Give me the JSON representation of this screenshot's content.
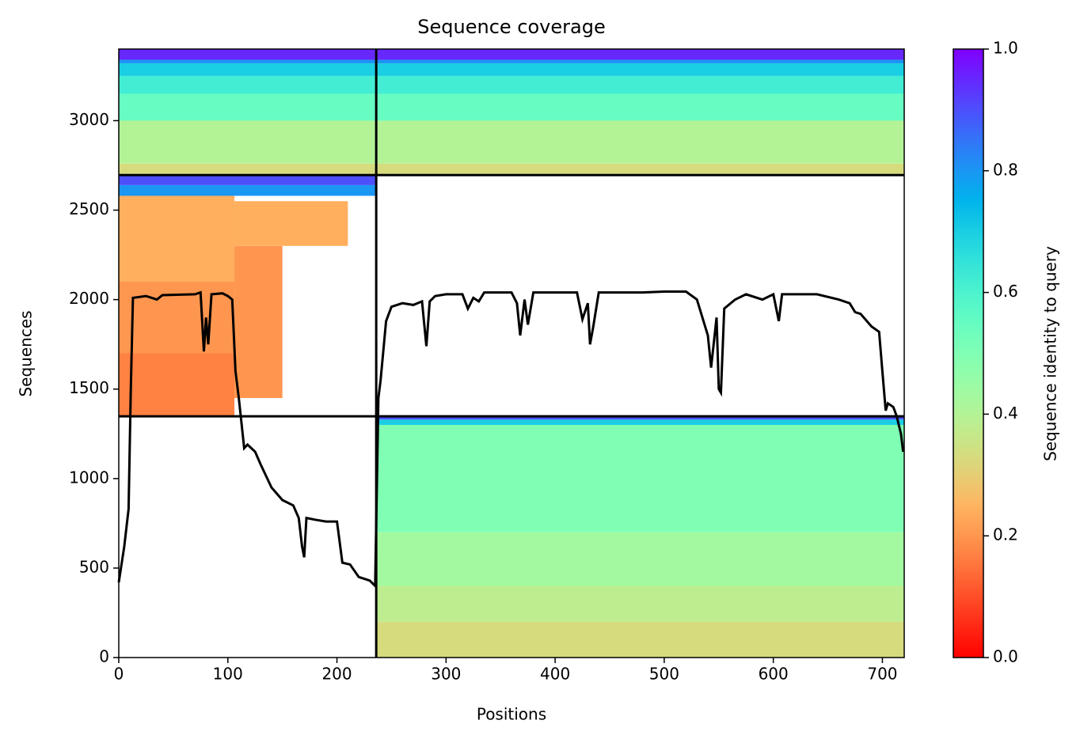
{
  "chart_data": {
    "type": "coverage",
    "title": "Sequence coverage",
    "xlabel": "Positions",
    "ylabel": "Sequences",
    "xlim": [
      0,
      720
    ],
    "ylim": [
      0,
      3400
    ],
    "xticks": [
      0,
      100,
      200,
      300,
      400,
      500,
      600,
      700
    ],
    "yticks": [
      0,
      500,
      1000,
      1500,
      2000,
      2500,
      3000
    ],
    "separators": {
      "x": [
        236
      ],
      "y": [
        1348,
        2696
      ]
    },
    "blocks": [
      {
        "x": [
          236,
          720
        ],
        "y": [
          0,
          200
        ],
        "identity": 0.33
      },
      {
        "x": [
          236,
          720
        ],
        "y": [
          200,
          400
        ],
        "identity": 0.38
      },
      {
        "x": [
          236,
          720
        ],
        "y": [
          400,
          700
        ],
        "identity": 0.43
      },
      {
        "x": [
          236,
          720
        ],
        "y": [
          700,
          1300
        ],
        "identity": 0.5
      },
      {
        "x": [
          236,
          720
        ],
        "y": [
          1300,
          1330
        ],
        "identity": 0.7
      },
      {
        "x": [
          236,
          720
        ],
        "y": [
          1330,
          1348
        ],
        "identity": 0.9
      },
      {
        "x": [
          0,
          106
        ],
        "y": [
          1348,
          1700
        ],
        "identity": 0.17
      },
      {
        "x": [
          0,
          106
        ],
        "y": [
          1700,
          2100
        ],
        "identity": 0.2
      },
      {
        "x": [
          0,
          106
        ],
        "y": [
          2100,
          2580
        ],
        "identity": 0.24
      },
      {
        "x": [
          106,
          150
        ],
        "y": [
          1450,
          2300
        ],
        "identity": 0.2
      },
      {
        "x": [
          106,
          210
        ],
        "y": [
          2300,
          2550
        ],
        "identity": 0.24
      },
      {
        "x": [
          0,
          236
        ],
        "y": [
          2580,
          2640
        ],
        "identity": 0.8
      },
      {
        "x": [
          0,
          236
        ],
        "y": [
          2640,
          2696
        ],
        "identity": 0.9
      },
      {
        "x": [
          0,
          720
        ],
        "y": [
          2696,
          2760
        ],
        "identity": 0.33
      },
      {
        "x": [
          0,
          720
        ],
        "y": [
          2760,
          3000
        ],
        "identity": 0.4
      },
      {
        "x": [
          0,
          720
        ],
        "y": [
          3000,
          3150
        ],
        "identity": 0.55
      },
      {
        "x": [
          0,
          720
        ],
        "y": [
          3150,
          3250
        ],
        "identity": 0.62
      },
      {
        "x": [
          0,
          720
        ],
        "y": [
          3250,
          3320
        ],
        "identity": 0.7
      },
      {
        "x": [
          0,
          720
        ],
        "y": [
          3320,
          3340
        ],
        "identity": 0.8
      },
      {
        "x": [
          0,
          720
        ],
        "y": [
          3340,
          3400
        ],
        "identity": 0.95
      }
    ],
    "coverage": {
      "color": "#000000",
      "x": [
        0,
        5,
        9,
        11,
        13,
        25,
        35,
        40,
        70,
        75,
        78,
        80,
        82,
        85,
        95,
        100,
        104,
        107,
        110,
        115,
        118,
        125,
        130,
        140,
        150,
        160,
        165,
        168,
        170,
        172,
        180,
        190,
        200,
        205,
        212,
        220,
        230,
        235,
        238,
        240,
        245,
        250,
        260,
        270,
        278,
        282,
        285,
        290,
        300,
        315,
        320,
        325,
        330,
        335,
        360,
        365,
        368,
        372,
        375,
        380,
        420,
        425,
        430,
        432,
        435,
        440,
        480,
        500,
        520,
        530,
        540,
        543,
        548,
        550,
        552,
        555,
        565,
        575,
        590,
        600,
        605,
        608,
        640,
        660,
        670,
        675,
        680,
        690,
        697,
        700,
        703,
        705,
        710,
        713,
        717,
        719
      ],
      "values": [
        420,
        620,
        830,
        1500,
        2010,
        2020,
        2000,
        2025,
        2030,
        2040,
        1710,
        1900,
        1750,
        2030,
        2035,
        2020,
        2000,
        1600,
        1450,
        1170,
        1190,
        1150,
        1080,
        950,
        880,
        850,
        780,
        620,
        560,
        780,
        770,
        760,
        760,
        530,
        520,
        450,
        430,
        400,
        1450,
        1550,
        1880,
        1960,
        1980,
        1970,
        1990,
        1740,
        1990,
        2020,
        2030,
        2030,
        1950,
        2010,
        1990,
        2040,
        2040,
        1980,
        1800,
        2000,
        1860,
        2040,
        2040,
        1890,
        1980,
        1750,
        1850,
        2040,
        2040,
        2045,
        2045,
        2000,
        1800,
        1620,
        1900,
        1500,
        1480,
        1950,
        2000,
        2030,
        2000,
        2030,
        1880,
        2030,
        2030,
        2000,
        1980,
        1930,
        1920,
        1850,
        1820,
        1600,
        1380,
        1420,
        1400,
        1350,
        1250,
        1150
      ]
    },
    "colorbar": {
      "label": "Sequence identity to query",
      "lim": [
        0,
        1
      ],
      "ticks": [
        {
          "value": 0,
          "label": "0.0"
        },
        0.2,
        0.4,
        0.6,
        0.8,
        {
          "value": 1,
          "label": "1.0"
        }
      ]
    }
  }
}
